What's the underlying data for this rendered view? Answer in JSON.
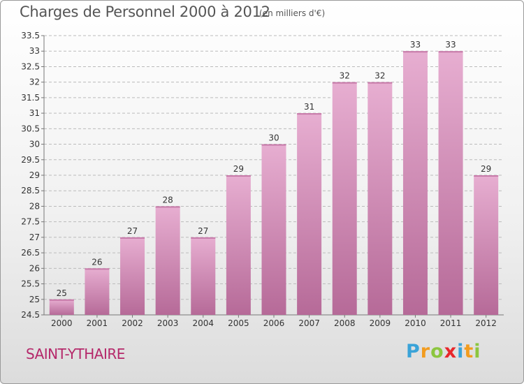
{
  "header": {
    "title": "Charges de Personnel 2000 à 2012",
    "subtitle": "(en milliers d'€)"
  },
  "footer": {
    "place": "SAINT-YTHAIRE",
    "logo": [
      "P",
      "r",
      "o",
      "x",
      "i",
      "t",
      "i"
    ],
    "logo_colors": [
      "#3aa3d8",
      "#f29c1f",
      "#8cc63f",
      "#e8272b",
      "#3aa3d8",
      "#f29c1f",
      "#8cc63f"
    ]
  },
  "colors": {
    "bar": "#d68bb9",
    "bar_light": "#e7aed1",
    "bar_dark": "#b66a98",
    "grid": "#bbbbbb",
    "axis_text": "#333333"
  },
  "chart_data": {
    "type": "bar",
    "title": "Charges de Personnel 2000 à 2012",
    "subtitle": "(en milliers d'€)",
    "xlabel": "",
    "ylabel": "",
    "ylim": [
      24.5,
      33.5
    ],
    "yticks": [
      "24.5",
      "25",
      "25.5",
      "26",
      "26.5",
      "27",
      "27.5",
      "28",
      "28.5",
      "29",
      "29.5",
      "30",
      "30.5",
      "31",
      "31.5",
      "32",
      "32.5",
      "33",
      "33.5"
    ],
    "categories": [
      "2000",
      "2001",
      "2002",
      "2003",
      "2004",
      "2005",
      "2006",
      "2007",
      "2008",
      "2009",
      "2010",
      "2011",
      "2012"
    ],
    "values": [
      25,
      26,
      27,
      28,
      27,
      29,
      30,
      31,
      32,
      32,
      33,
      33,
      29
    ],
    "grid": true
  }
}
